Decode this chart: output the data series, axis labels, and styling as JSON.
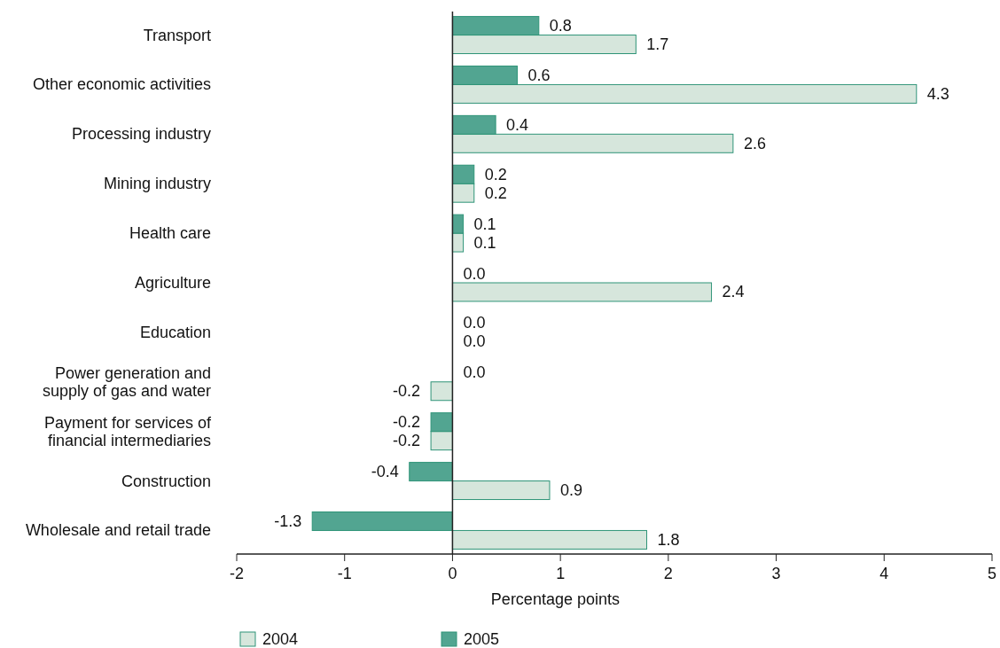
{
  "chart_data": {
    "type": "bar",
    "orientation": "horizontal",
    "xlabel": "Percentage points",
    "categories": [
      "Transport",
      "Other economic activities",
      "Processing industry",
      "Mining industry",
      "Health care",
      "Agriculture",
      "Education",
      "Power generation and supply of gas and water",
      "Payment for services of financial intermediaries",
      "Construction",
      "Wholesale and retail trade"
    ],
    "series": [
      {
        "name": "2004",
        "color": "#d6e6dc",
        "values": [
          1.7,
          4.3,
          2.6,
          0.2,
          0.1,
          2.4,
          0.0,
          -0.2,
          -0.2,
          0.9,
          1.8
        ],
        "value_labels": [
          "1.7",
          "4.3",
          "2.6",
          "0.2",
          "0.1",
          "2.4",
          "0.0",
          "-0.2",
          "-0.2",
          "0.9",
          "1.8"
        ]
      },
      {
        "name": "2005",
        "color": "#52a591",
        "values": [
          0.8,
          0.6,
          0.4,
          0.2,
          0.1,
          0.0,
          0.0,
          0.0,
          -0.2,
          -0.4,
          -1.3
        ],
        "value_labels": [
          "0.8",
          "0.6",
          "0.4",
          "0.2",
          "0.1",
          "0.0",
          "0.0",
          "0.0",
          "-0.2",
          "-0.4",
          "-1.3"
        ]
      }
    ],
    "xlim": [
      -2,
      5
    ],
    "xticks": [
      -2,
      -1,
      0,
      1,
      2,
      3,
      4,
      5
    ],
    "legend": "bottom"
  }
}
